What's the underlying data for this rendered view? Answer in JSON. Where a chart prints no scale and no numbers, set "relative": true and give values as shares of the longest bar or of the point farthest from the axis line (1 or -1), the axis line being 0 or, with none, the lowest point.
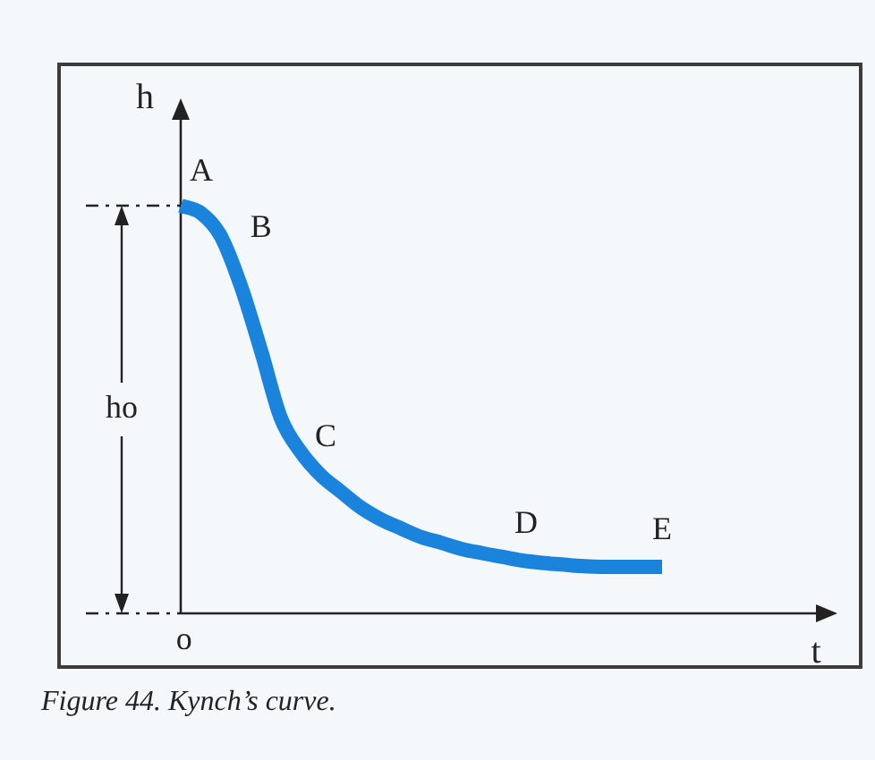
{
  "chart_data": {
    "type": "line",
    "title": "Figure 44. Kynch’s curve.",
    "xlabel": "t",
    "ylabel": "h",
    "categories": [
      null,
      null,
      null,
      null,
      null,
      null,
      null,
      null,
      null,
      null,
      null,
      null,
      null,
      null,
      null,
      null,
      null,
      null,
      null,
      null,
      null,
      null,
      null,
      null,
      null
    ],
    "values": [
      1,
      0.982,
      0.925,
      0.803,
      0.645,
      0.478,
      0.395,
      0.338,
      0.298,
      0.259,
      0.23,
      0.208,
      0.187,
      0.173,
      0.158,
      0.148,
      0.139,
      0.13,
      0.124,
      0.12,
      0.116,
      0.114,
      0.114,
      0.114,
      0.114
    ],
    "color": "#1a84dc",
    "relative": true,
    "legend": false,
    "marker": "none",
    "line_style": "solid",
    "annotations": [
      "o",
      "ho",
      {
        "text": "A",
        "y": 1
      },
      "B",
      "C",
      {
        "text": "D",
        "y": 0.13
      },
      {
        "text": "E",
        "y": 0.114
      }
    ]
  }
}
